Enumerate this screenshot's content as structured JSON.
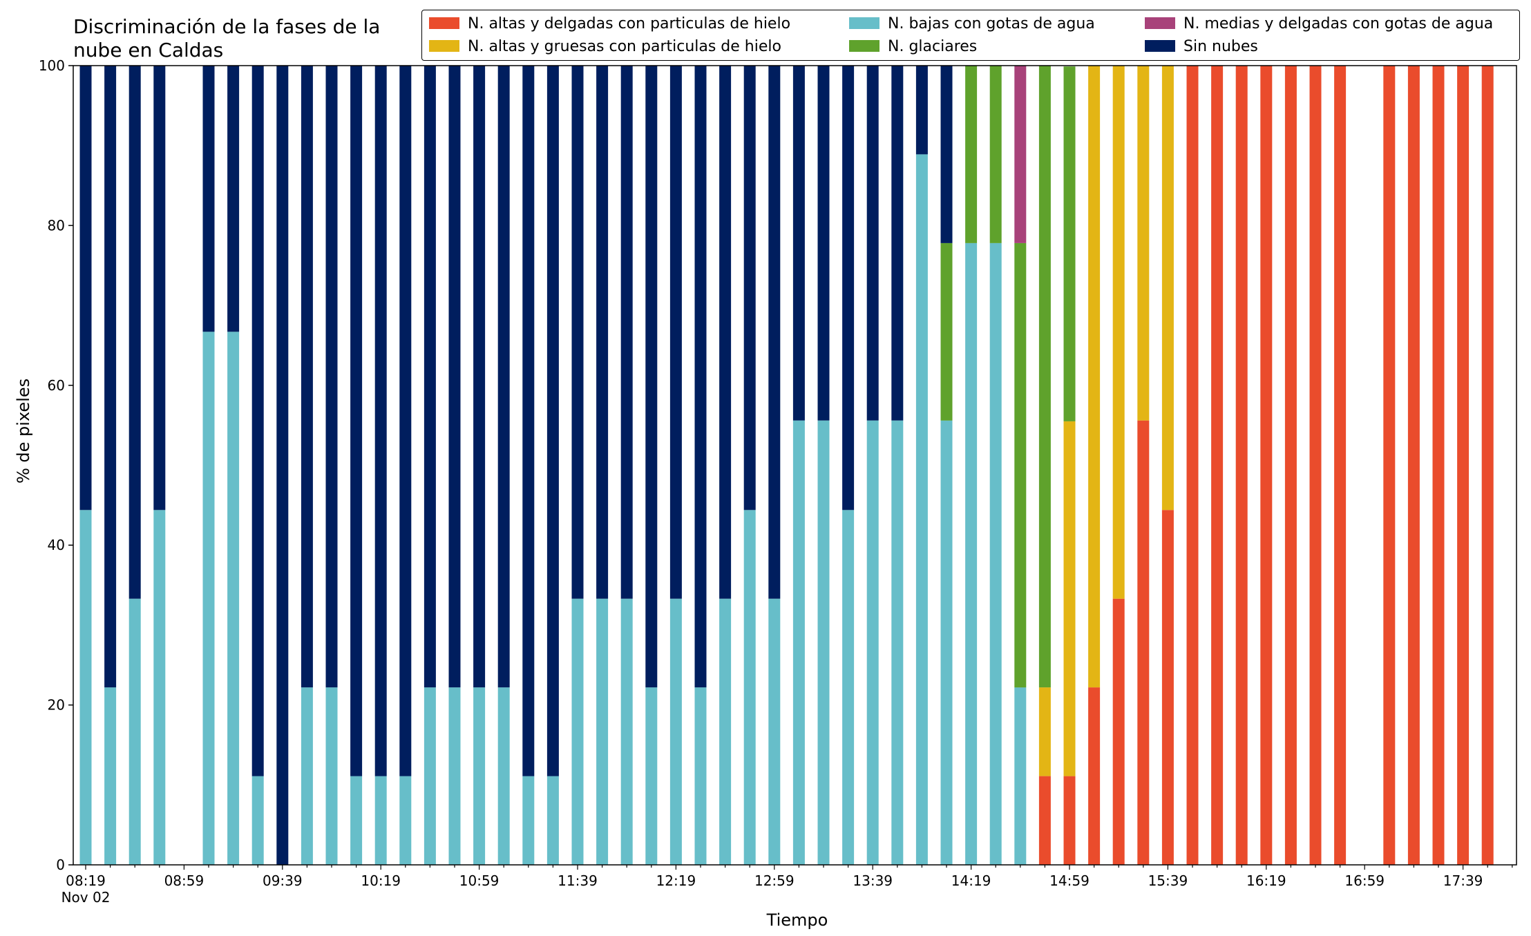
{
  "chart_data": {
    "type": "bar",
    "stacked": true,
    "title": "Discriminación de la fases de la nube en Caldas",
    "xlabel": "Tiempo",
    "ylabel": "% de pixeles",
    "ylim": [
      0,
      100
    ],
    "yticks": [
      0,
      20,
      40,
      60,
      80,
      100
    ],
    "xtick_labels": [
      "08:19",
      "08:59",
      "09:39",
      "10:19",
      "10:59",
      "11:39",
      "12:19",
      "12:59",
      "13:39",
      "14:19",
      "14:59",
      "15:39",
      "16:19",
      "16:59",
      "17:39"
    ],
    "x_date_label": "Nov 02",
    "legend_position": "top-right",
    "grid": false,
    "categories": [
      "08:19",
      "08:29",
      "08:39",
      "08:49",
      "08:59",
      "09:09",
      "09:19",
      "09:29",
      "09:39",
      "09:49",
      "09:59",
      "10:09",
      "10:19",
      "10:29",
      "10:39",
      "10:49",
      "10:59",
      "11:09",
      "11:19",
      "11:29",
      "11:39",
      "11:49",
      "11:59",
      "12:09",
      "12:19",
      "12:29",
      "12:39",
      "12:49",
      "12:59",
      "13:09",
      "13:19",
      "13:29",
      "13:39",
      "13:49",
      "13:59",
      "14:09",
      "14:19",
      "14:29",
      "14:39",
      "14:49",
      "14:59",
      "15:09",
      "15:19",
      "15:29",
      "15:39",
      "15:49",
      "15:59",
      "16:09",
      "16:19",
      "16:29",
      "16:39",
      "16:49",
      "16:59",
      "17:09",
      "17:19",
      "17:29",
      "17:39",
      "17:49"
    ],
    "series": [
      {
        "name": "N. altas y delgadas con particulas de hielo",
        "color": "#ea4c2c",
        "values": [
          0,
          0,
          0,
          0,
          0,
          0,
          0,
          0,
          0,
          0,
          0,
          0,
          0,
          0,
          0,
          0,
          0,
          0,
          0,
          0,
          0,
          0,
          0,
          0,
          0,
          0,
          0,
          0,
          0,
          0,
          0,
          0,
          0,
          0,
          0,
          0,
          0,
          0,
          0,
          11.1,
          11.1,
          22.2,
          33.3,
          55.6,
          44.4,
          100,
          100,
          100,
          100,
          100,
          100,
          100,
          0,
          100,
          100,
          100,
          100,
          100
        ]
      },
      {
        "name": "N. altas y gruesas con particulas de hielo",
        "color": "#e3b515",
        "values": [
          0,
          0,
          0,
          0,
          0,
          0,
          0,
          0,
          0,
          0,
          0,
          0,
          0,
          0,
          0,
          0,
          0,
          0,
          0,
          0,
          0,
          0,
          0,
          0,
          0,
          0,
          0,
          0,
          0,
          0,
          0,
          0,
          0,
          0,
          0,
          0,
          0,
          0,
          0,
          11.1,
          44.4,
          77.8,
          66.7,
          44.4,
          55.6,
          0,
          0,
          0,
          0,
          0,
          0,
          0,
          0,
          0,
          0,
          0,
          0,
          0
        ]
      },
      {
        "name": "N. bajas con gotas de agua",
        "color": "#67bec9",
        "values": [
          44.4,
          22.2,
          33.3,
          44.4,
          0,
          66.7,
          66.7,
          11.1,
          0,
          22.2,
          22.2,
          11.1,
          11.1,
          11.1,
          22.2,
          22.2,
          22.2,
          22.2,
          11.1,
          11.1,
          33.3,
          33.3,
          33.3,
          22.2,
          33.3,
          22.2,
          33.3,
          44.4,
          33.3,
          55.6,
          55.6,
          44.4,
          55.6,
          55.6,
          88.9,
          55.6,
          77.8,
          77.8,
          22.2,
          0,
          0,
          0,
          0,
          0,
          0,
          0,
          0,
          0,
          0,
          0,
          0,
          0,
          0,
          0,
          0,
          0,
          0,
          0
        ]
      },
      {
        "name": "N. glaciares",
        "color": "#5fa22c",
        "values": [
          0,
          0,
          0,
          0,
          0,
          0,
          0,
          0,
          0,
          0,
          0,
          0,
          0,
          0,
          0,
          0,
          0,
          0,
          0,
          0,
          0,
          0,
          0,
          0,
          0,
          0,
          0,
          0,
          0,
          0,
          0,
          0,
          0,
          0,
          0,
          22.2,
          22.2,
          22.2,
          55.6,
          77.8,
          44.4,
          0,
          0,
          0,
          0,
          0,
          0,
          0,
          0,
          0,
          0,
          0,
          0,
          0,
          0,
          0,
          0,
          0
        ]
      },
      {
        "name": "N. medias y delgadas con gotas de agua",
        "color": "#a8427a",
        "values": [
          0,
          0,
          0,
          0,
          0,
          0,
          0,
          0,
          0,
          0,
          0,
          0,
          0,
          0,
          0,
          0,
          0,
          0,
          0,
          0,
          0,
          0,
          0,
          0,
          0,
          0,
          0,
          0,
          0,
          0,
          0,
          0,
          0,
          0,
          0,
          0,
          0,
          0,
          22.2,
          0,
          0,
          0,
          0,
          0,
          0,
          0,
          0,
          0,
          0,
          0,
          0,
          0,
          0,
          0,
          0,
          0,
          0,
          0
        ]
      },
      {
        "name": "Sin nubes",
        "color": "#001e5e",
        "values": [
          55.6,
          77.8,
          66.7,
          55.6,
          0,
          33.3,
          33.3,
          88.9,
          100,
          77.8,
          77.8,
          88.9,
          88.9,
          88.9,
          77.8,
          77.8,
          77.8,
          77.8,
          88.9,
          88.9,
          66.7,
          66.7,
          66.7,
          77.8,
          66.7,
          77.8,
          66.7,
          55.6,
          66.7,
          44.4,
          44.4,
          55.6,
          44.4,
          44.4,
          11.1,
          22.2,
          0,
          0,
          0,
          0,
          0,
          0,
          0,
          0,
          0,
          0,
          0,
          0,
          0,
          0,
          0,
          0,
          0,
          0,
          0,
          0,
          0,
          0
        ]
      }
    ]
  }
}
